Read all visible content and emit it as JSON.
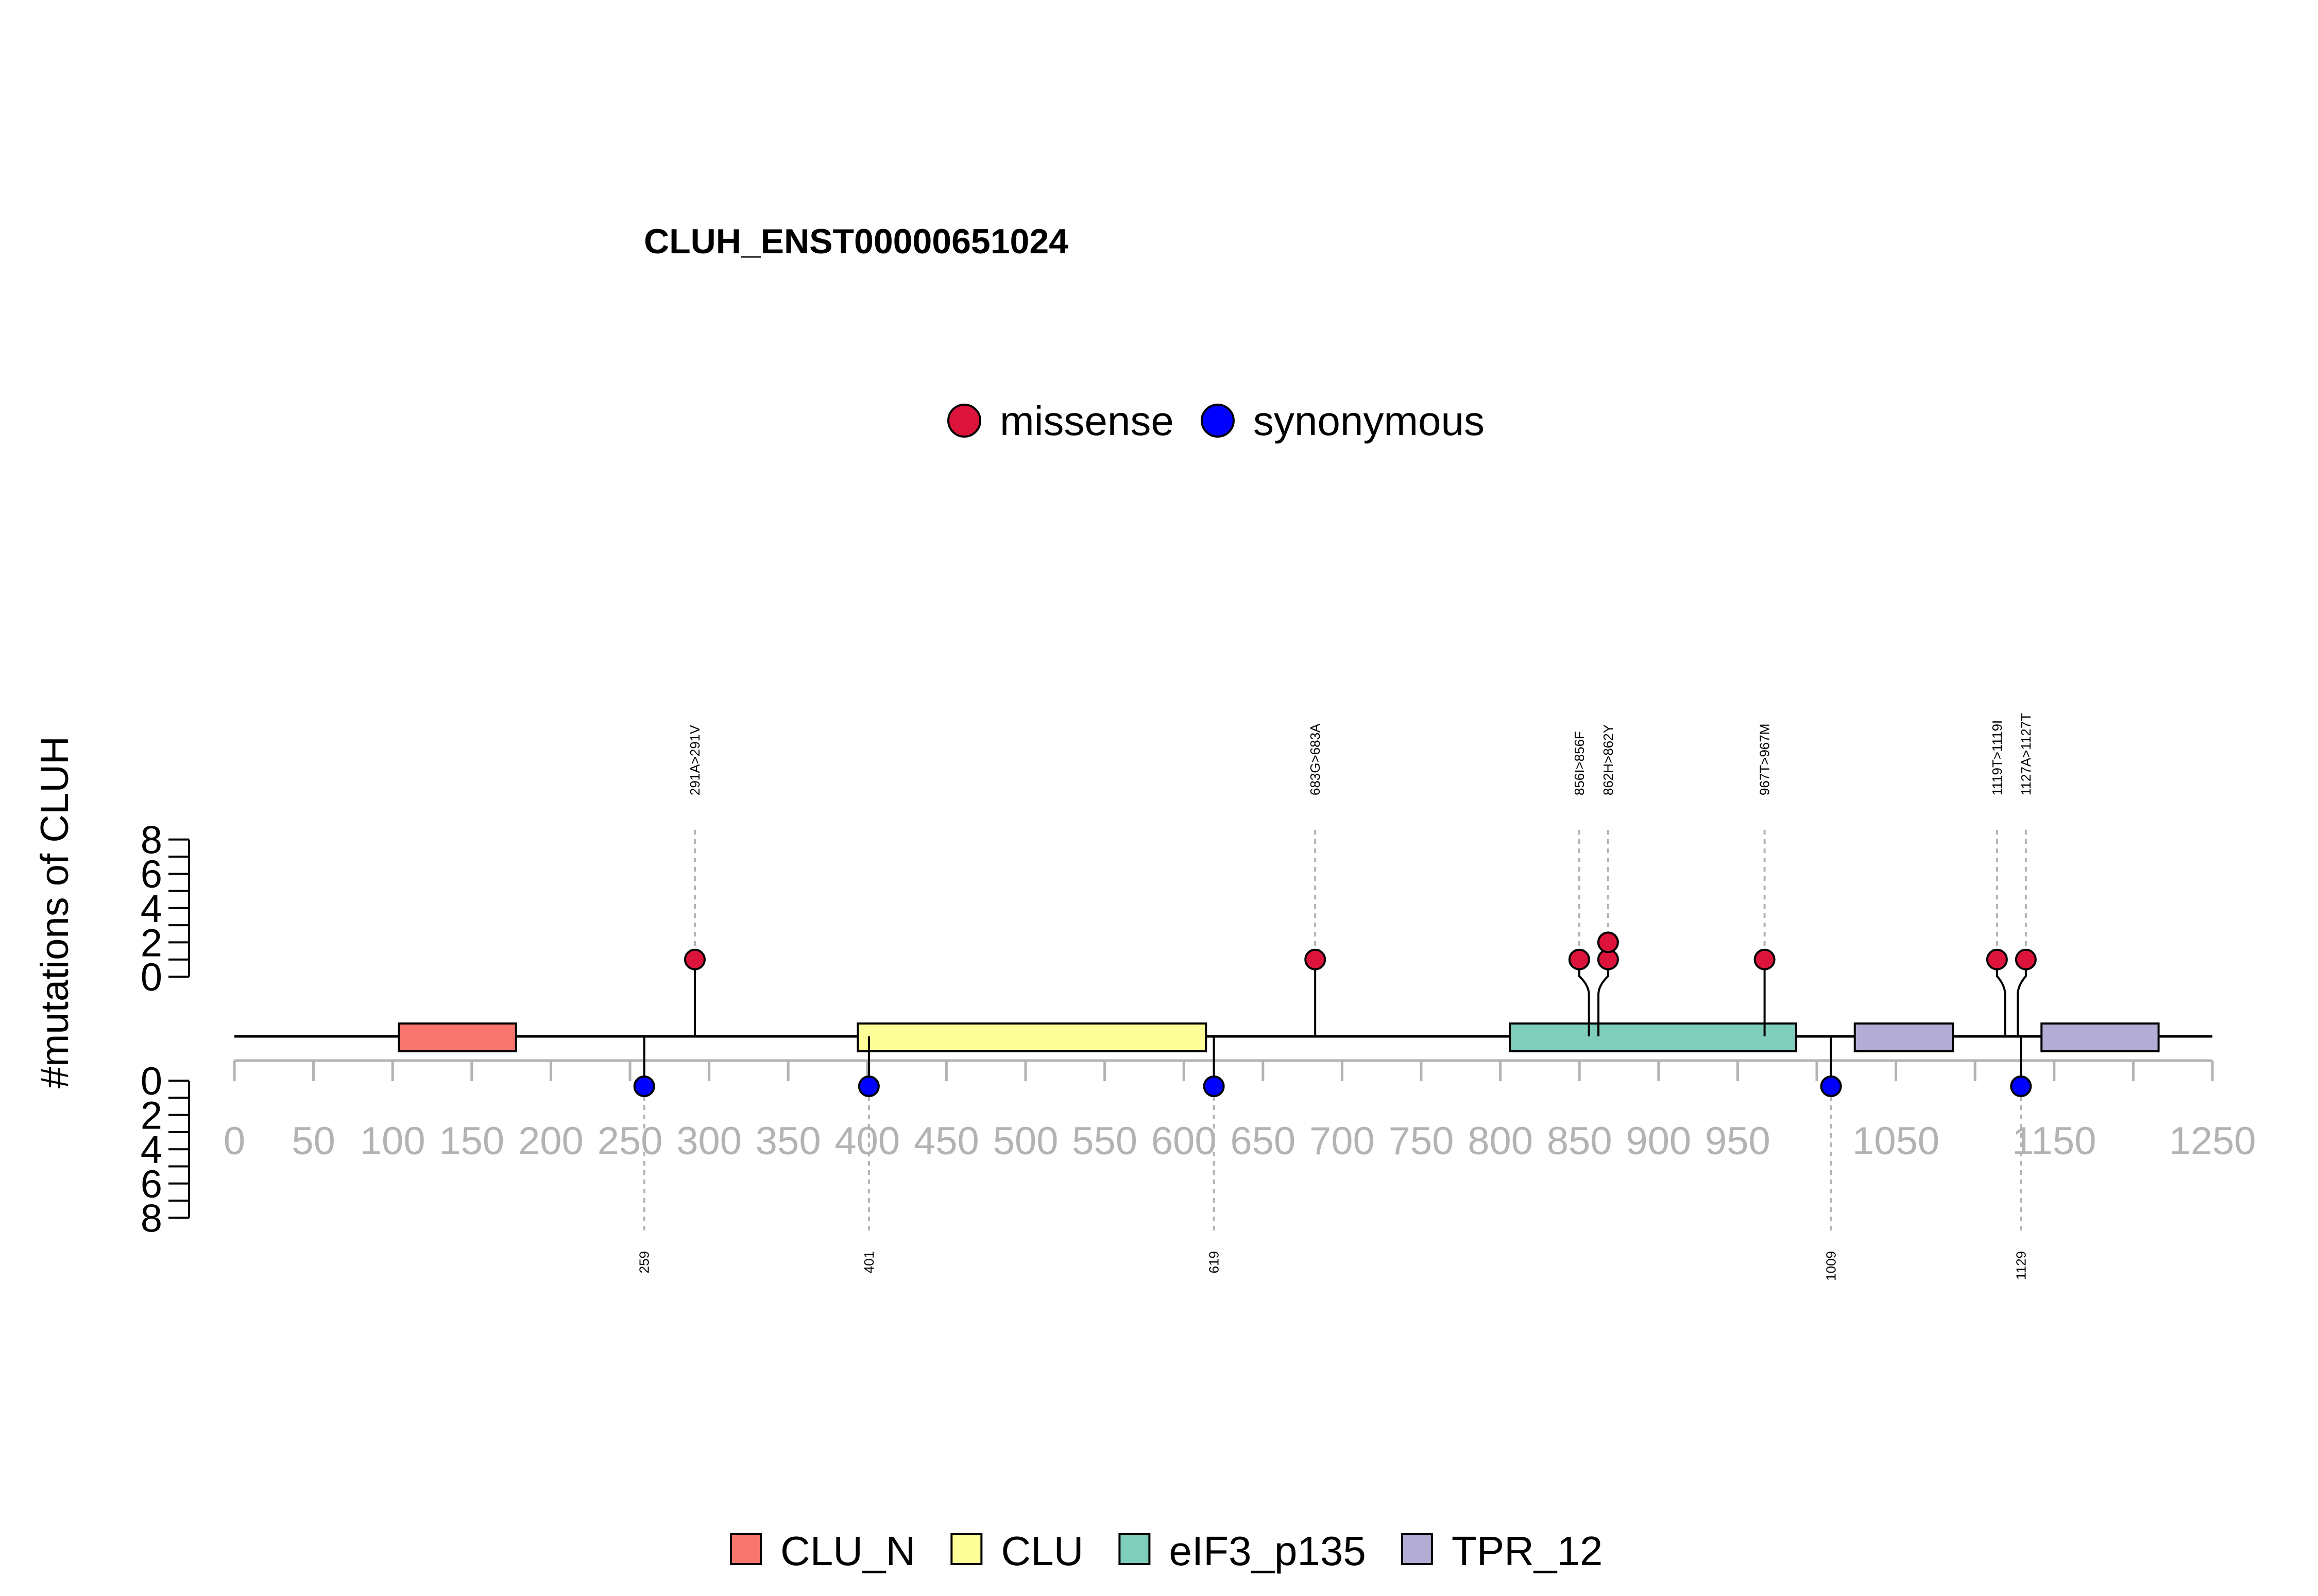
{
  "chart_data": {
    "type": "lollipop",
    "title": "CLUH_ENST00000651024",
    "ylabel": "#mutations of CLUH",
    "xlim": [
      0,
      1250
    ],
    "x_ticks": [
      0,
      50,
      100,
      150,
      200,
      250,
      300,
      350,
      400,
      450,
      500,
      550,
      600,
      650,
      700,
      750,
      800,
      850,
      900,
      950,
      1050,
      1150,
      1250
    ],
    "y_ticks": [
      0,
      2,
      4,
      6,
      8
    ],
    "ylim": [
      0,
      8
    ],
    "mutation_legend": [
      {
        "name": "missense",
        "color": "#DC143C"
      },
      {
        "name": "synonymous",
        "color": "#0000FF"
      }
    ],
    "domain_legend": [
      {
        "name": "CLU_N",
        "color": "#F8766D"
      },
      {
        "name": "CLU",
        "color": "#FFFF99"
      },
      {
        "name": "eIF3_p135",
        "color": "#7FCDBB"
      },
      {
        "name": "TPR_12",
        "color": "#B3ADD6"
      }
    ],
    "domains": [
      {
        "name": "CLU_N",
        "start": 104,
        "end": 178
      },
      {
        "name": "CLU",
        "start": 394,
        "end": 614
      },
      {
        "name": "eIF3_p135",
        "start": 806,
        "end": 987
      },
      {
        "name": "TPR_12",
        "start": 1024,
        "end": 1086
      },
      {
        "name": "TPR_12",
        "start": 1142,
        "end": 1216
      }
    ],
    "missense": [
      {
        "position": 291,
        "label": "291A>291V",
        "count": 1
      },
      {
        "position": 683,
        "label": "683G>683A",
        "count": 1
      },
      {
        "position": 856,
        "label": "856I>856F",
        "count": 1
      },
      {
        "position": 862,
        "label": "862H>862Y",
        "count": 2
      },
      {
        "position": 967,
        "label": "967T>967M",
        "count": 1
      },
      {
        "position": 1119,
        "label": "1119T>1119I",
        "count": 1
      },
      {
        "position": 1127,
        "label": "1127A>1127T",
        "count": 1
      }
    ],
    "synonymous": [
      {
        "position": 259,
        "label": "259",
        "count": 1
      },
      {
        "position": 401,
        "label": "401",
        "count": 1
      },
      {
        "position": 619,
        "label": "619",
        "count": 1
      },
      {
        "position": 1009,
        "label": "1009",
        "count": 1
      },
      {
        "position": 1129,
        "label": "1129",
        "count": 1
      }
    ]
  }
}
